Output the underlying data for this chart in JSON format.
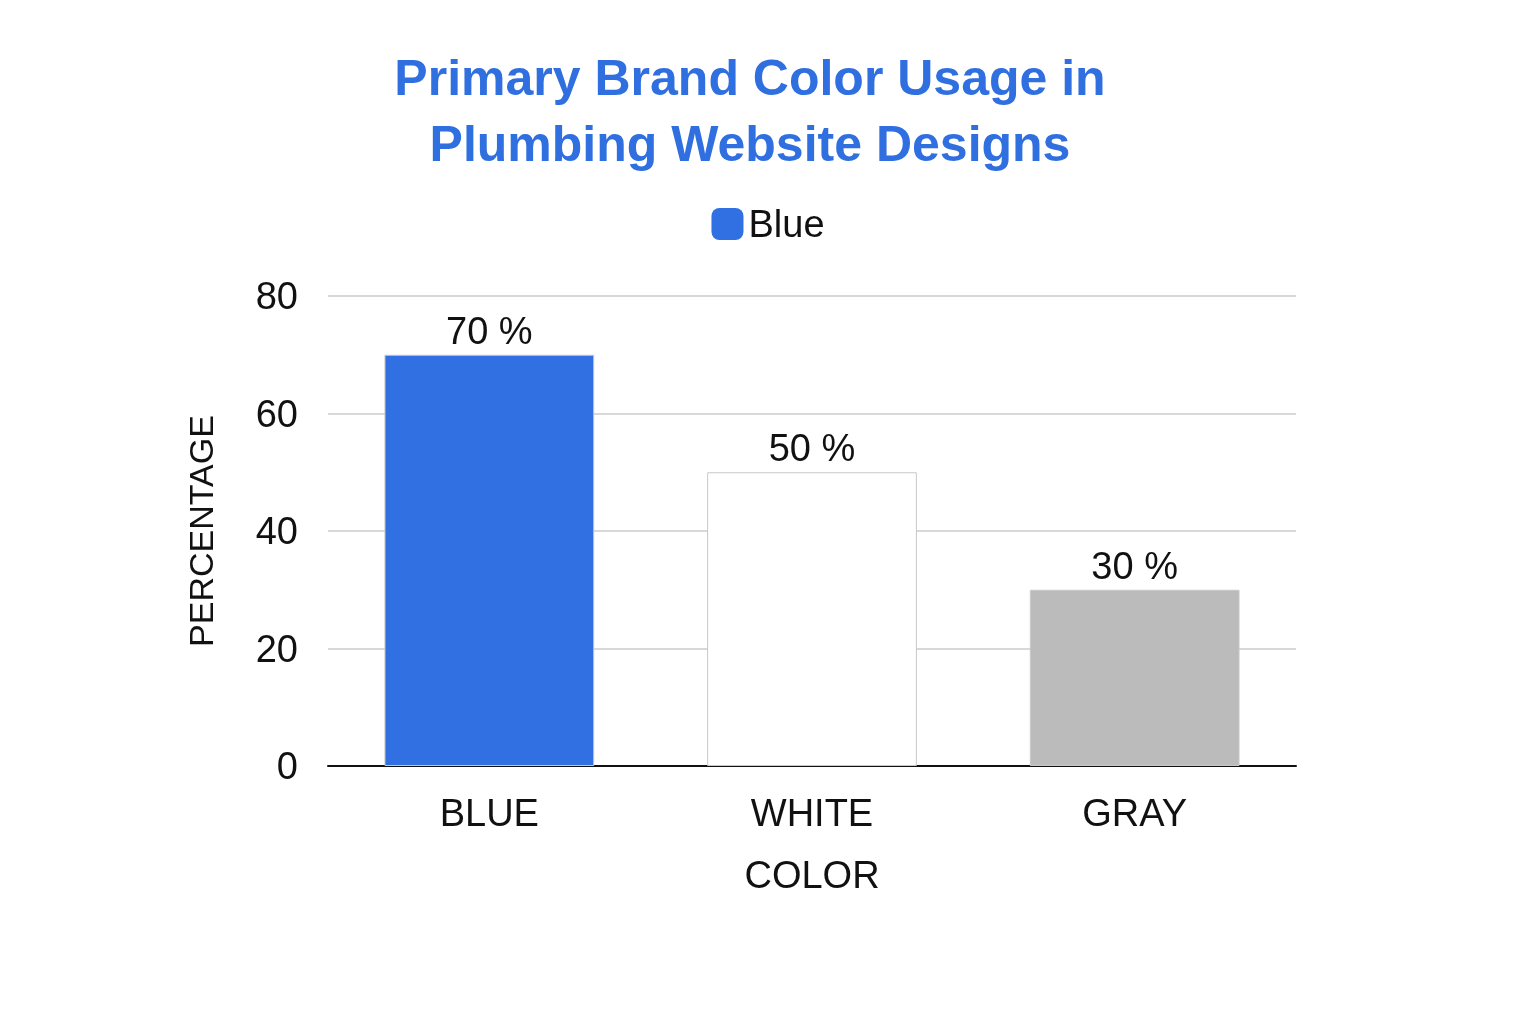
{
  "chart_data": {
    "type": "bar",
    "title": "Primary Brand Color Usage in\nPlumbing Website Designs",
    "xlabel": "COLOR",
    "ylabel": "PERCENTAGE",
    "categories": [
      "BLUE",
      "WHITE",
      "GRAY"
    ],
    "series": [
      {
        "name": "Blue",
        "color": "#3070e3",
        "colors": [
          "#3070e3",
          "#ffffff",
          "#bbbbbb"
        ],
        "values": [
          70,
          50,
          30
        ],
        "value_labels": [
          "70 %",
          "50 %",
          "30 %"
        ]
      }
    ],
    "ylim": [
      0,
      80
    ],
    "yticks": [
      0,
      20,
      40,
      60,
      80
    ],
    "grid": "y",
    "legend": "top"
  }
}
